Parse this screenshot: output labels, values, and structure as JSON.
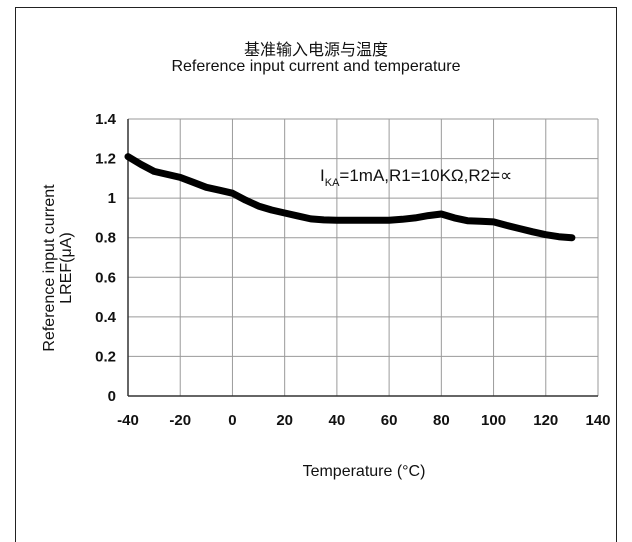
{
  "chart_data": {
    "type": "line",
    "title": "基准输入电源与温度",
    "subtitle": "Reference input current and temperature",
    "xlabel": "Temperature (°C)",
    "ylabel_line1": "Reference input current",
    "ylabel_line2": "LREF(μA)",
    "annotation": {
      "prefix": "I",
      "subscript": "KA",
      "rest": "=1mA,R1=10KΩ,R2=∝"
    },
    "xlim": [
      -40,
      140
    ],
    "ylim": [
      0,
      1.4
    ],
    "x_ticks": [
      -40,
      -20,
      0,
      20,
      40,
      60,
      80,
      100,
      120,
      140
    ],
    "y_ticks": [
      0,
      0.2,
      0.4,
      0.6,
      0.8,
      1,
      1.2,
      1.4
    ],
    "x_tick_labels": [
      "-40",
      "-20",
      "0",
      "20",
      "40",
      "60",
      "80",
      "100",
      "120",
      "140"
    ],
    "y_tick_labels": [
      "0",
      "0.2",
      "0.4",
      "0.6",
      "0.8",
      "1",
      "1.2",
      "1.4"
    ],
    "grid": true,
    "series": [
      {
        "color": "#000000",
        "x": [
          -40,
          -35,
          -30,
          -25,
          -20,
          -15,
          -10,
          -5,
          0,
          5,
          10,
          15,
          20,
          25,
          30,
          35,
          40,
          45,
          50,
          55,
          60,
          65,
          70,
          75,
          80,
          85,
          90,
          95,
          100,
          105,
          110,
          115,
          120,
          125,
          130
        ],
        "y": [
          1.21,
          1.17,
          1.135,
          1.12,
          1.105,
          1.08,
          1.055,
          1.04,
          1.025,
          0.99,
          0.96,
          0.94,
          0.925,
          0.91,
          0.895,
          0.89,
          0.888,
          0.888,
          0.888,
          0.888,
          0.888,
          0.893,
          0.9,
          0.912,
          0.92,
          0.9,
          0.886,
          0.883,
          0.88,
          0.862,
          0.846,
          0.83,
          0.815,
          0.805,
          0.8
        ]
      }
    ]
  }
}
